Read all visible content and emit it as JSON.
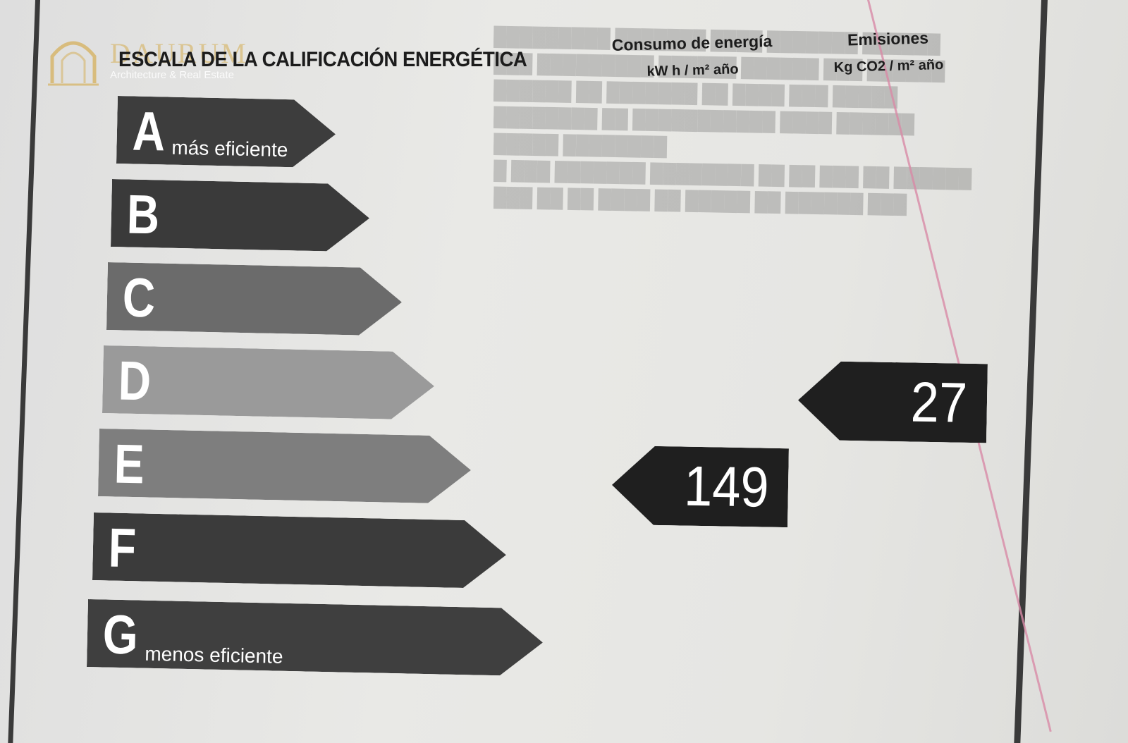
{
  "logo": {
    "name": "DAURUM",
    "tagline": "Architecture & Real Estate"
  },
  "scale_title": "ESCALA DE LA CALIFICACIÓN ENERGÉTICA",
  "columns": {
    "energy": {
      "title": "Consumo de energía",
      "unit": "kW h / m² año"
    },
    "emissions": {
      "title": "Emisiones",
      "unit": "Kg CO2 / m²  año"
    }
  },
  "bars": [
    {
      "letter": "A",
      "sub": "más eficiente"
    },
    {
      "letter": "B",
      "sub": ""
    },
    {
      "letter": "C",
      "sub": ""
    },
    {
      "letter": "D",
      "sub": ""
    },
    {
      "letter": "E",
      "sub": ""
    },
    {
      "letter": "F",
      "sub": ""
    },
    {
      "letter": "G",
      "sub": "menos eficiente"
    }
  ],
  "ratings": {
    "energy_value": "149",
    "emissions_value": "27"
  },
  "colors": {
    "bar_dark": "#3d3d3d",
    "bar_light": "#9a9a9a",
    "indicator": "#1f1f1f",
    "logo_gold": "#d6b05c"
  }
}
